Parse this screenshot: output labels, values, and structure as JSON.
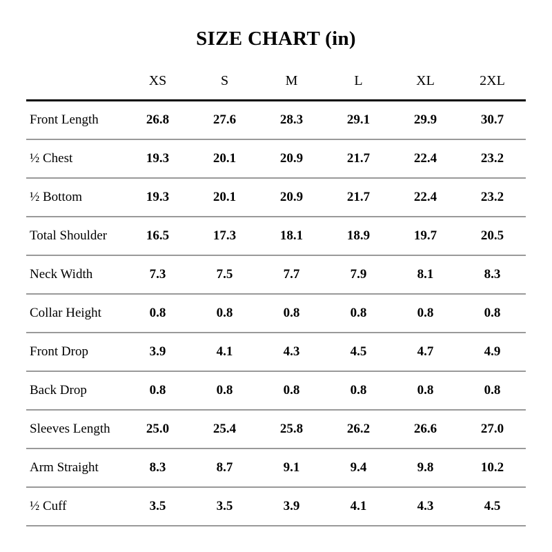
{
  "page_title": "SIZE CHART (in)",
  "colors": {
    "background": "#ffffff",
    "text": "#000000",
    "header_rule": "#000000",
    "row_rule": "#999999"
  },
  "chart_data": {
    "type": "table",
    "title": "SIZE CHART (in)",
    "units": "in",
    "columns": [
      "XS",
      "S",
      "M",
      "L",
      "XL",
      "2XL"
    ],
    "rows": [
      {
        "label": "Front Length",
        "values": [
          "26.8",
          "27.6",
          "28.3",
          "29.1",
          "29.9",
          "30.7"
        ]
      },
      {
        "label": "½ Chest",
        "values": [
          "19.3",
          "20.1",
          "20.9",
          "21.7",
          "22.4",
          "23.2"
        ]
      },
      {
        "label": "½ Bottom",
        "values": [
          "19.3",
          "20.1",
          "20.9",
          "21.7",
          "22.4",
          "23.2"
        ]
      },
      {
        "label": "Total Shoulder",
        "values": [
          "16.5",
          "17.3",
          "18.1",
          "18.9",
          "19.7",
          "20.5"
        ]
      },
      {
        "label": "Neck Width",
        "values": [
          "7.3",
          "7.5",
          "7.7",
          "7.9",
          "8.1",
          "8.3"
        ]
      },
      {
        "label": "Collar Height",
        "values": [
          "0.8",
          "0.8",
          "0.8",
          "0.8",
          "0.8",
          "0.8"
        ]
      },
      {
        "label": "Front Drop",
        "values": [
          "3.9",
          "4.1",
          "4.3",
          "4.5",
          "4.7",
          "4.9"
        ]
      },
      {
        "label": "Back Drop",
        "values": [
          "0.8",
          "0.8",
          "0.8",
          "0.8",
          "0.8",
          "0.8"
        ]
      },
      {
        "label": "Sleeves Length",
        "values": [
          "25.0",
          "25.4",
          "25.8",
          "26.2",
          "26.6",
          "27.0"
        ]
      },
      {
        "label": "Arm Straight",
        "values": [
          "8.3",
          "8.7",
          "9.1",
          "9.4",
          "9.8",
          "10.2"
        ]
      },
      {
        "label": "½ Cuff",
        "values": [
          "3.5",
          "3.5",
          "3.9",
          "4.1",
          "4.3",
          "4.5"
        ]
      }
    ]
  }
}
